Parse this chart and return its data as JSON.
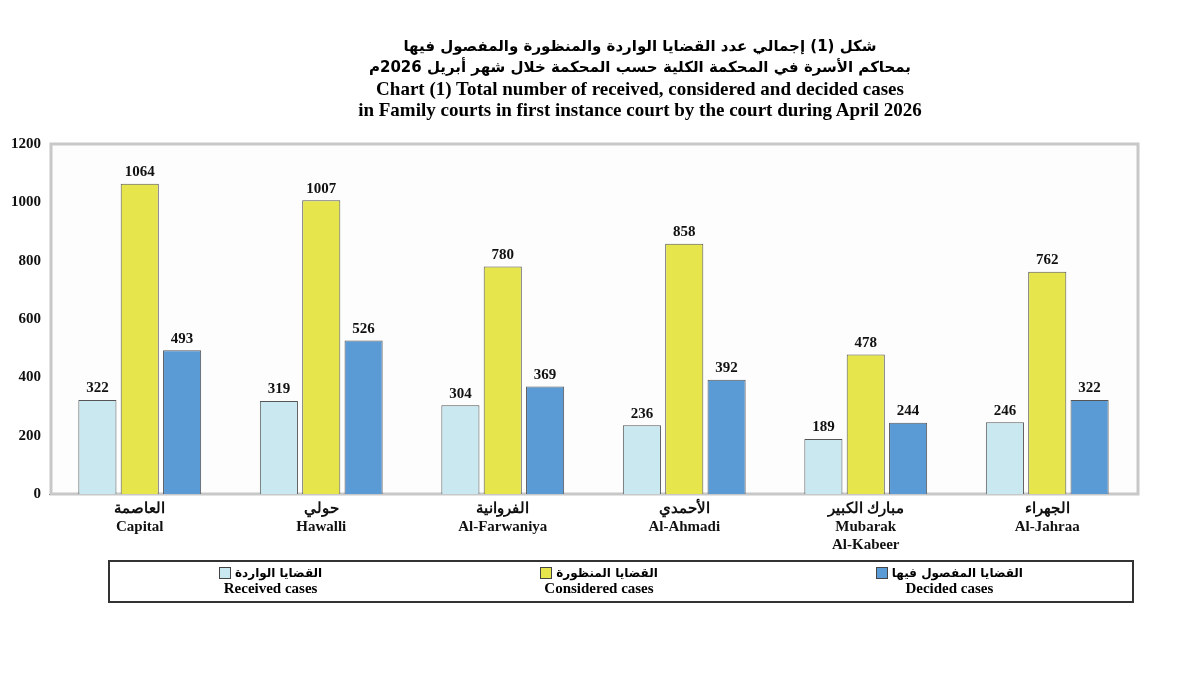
{
  "chart_data": {
    "type": "bar",
    "title": "شكل (1) إجمالي عدد القضايا الواردة والمنظورة والمفصول فيها\nبمحاكم الأسرة في المحكمة الكلية حسب المحكمة خلال شهر أبريل 2026م\nChart (1) Total number of received, considered and decided cases\nin Family courts in first instance court by the court during April 2026",
    "categories": [
      "العاصمة\nCapital",
      "حولي\nHawalli",
      "الفروانية\nAl-Farwaniya",
      "الأحمدي\nAl-Ahmadi",
      "مبارك الكبير\nMubarak\nAl-Kabeer",
      "الجهراء\nAl-Jahraa"
    ],
    "series": [
      {
        "name": "القضايا الواردة\nReceived cases",
        "color": "#c9e8f0",
        "values": [
          322,
          319,
          304,
          236,
          189,
          246
        ]
      },
      {
        "name": "القضايا المنظورة\nConsidered cases",
        "color": "#e6e64c",
        "values": [
          1064,
          1007,
          780,
          858,
          478,
          762
        ]
      },
      {
        "name": "القضايا المفصول فيها\nDecided cases",
        "color": "#5b9bd5",
        "values": [
          493,
          526,
          369,
          392,
          244,
          322
        ]
      }
    ],
    "ylim": [
      0,
      1200
    ],
    "yticks": [
      0,
      200,
      400,
      600,
      800,
      1000,
      1200
    ],
    "grid": false,
    "legend": "bottom",
    "data_labels": true
  }
}
